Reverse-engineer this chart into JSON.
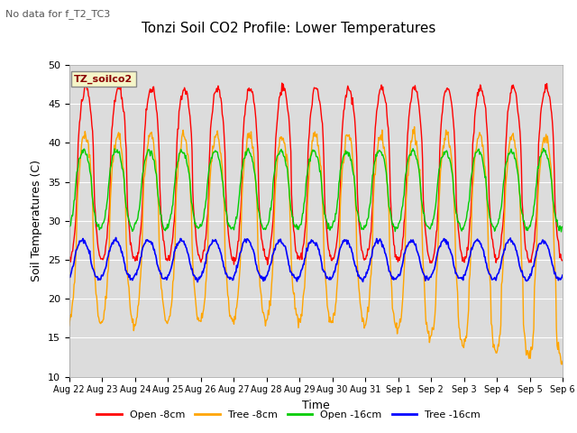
{
  "title": "Tonzi Soil CO2 Profile: Lower Temperatures",
  "subtitle": "No data for f_T2_TC3",
  "xlabel": "Time",
  "ylabel": "Soil Temperatures (C)",
  "ylim": [
    10,
    50
  ],
  "yticks": [
    10,
    15,
    20,
    25,
    30,
    35,
    40,
    45,
    50
  ],
  "legend_label": "TZ_soilco2",
  "series_labels": [
    "Open -8cm",
    "Tree -8cm",
    "Open -16cm",
    "Tree -16cm"
  ],
  "series_colors": [
    "#ff0000",
    "#ffa500",
    "#00cc00",
    "#0000ff"
  ],
  "background_color": "#dcdcdc",
  "x_tick_labels": [
    "Aug 22",
    "Aug 23",
    "Aug 24",
    "Aug 25",
    "Aug 26",
    "Aug 27",
    "Aug 28",
    "Aug 29",
    "Aug 30",
    "Aug 31",
    "Sep 1",
    "Sep 2",
    "Sep 3",
    "Sep 4",
    "Sep 5",
    "Sep 6"
  ],
  "n_days": 15
}
